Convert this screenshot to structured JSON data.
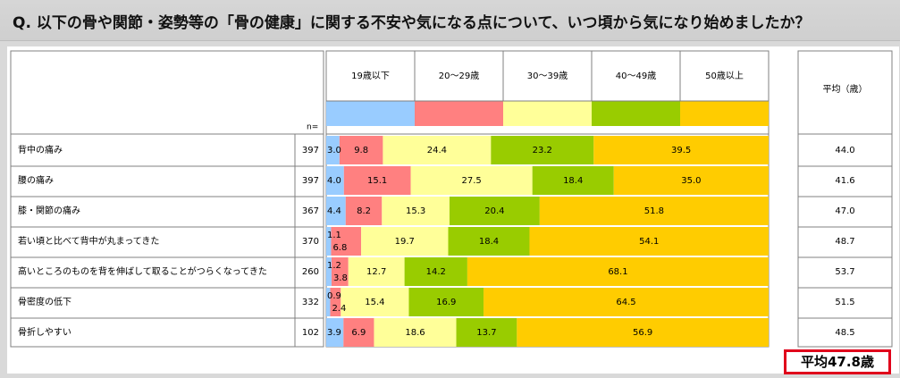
{
  "title": "Q. 以下の骨や関節・姿勢等の「骨の健康」に関する不安や気になる点について、いつ頃から気になり始めましたか？",
  "n_label": "n=",
  "avg_header": "平均（歳）",
  "overall_avg": "平均47.8歳",
  "colors": {
    "seg": [
      "#99ccff",
      "#ff8080",
      "#ffff99",
      "#99cc00",
      "#ffcc00"
    ],
    "border": "#808080",
    "red": "#e0001b"
  },
  "chart_data": {
    "type": "bar",
    "orientation": "horizontal",
    "stacked": true,
    "series": [
      {
        "name": "19歳以下",
        "values": [
          3.0,
          4.0,
          4.4,
          1.1,
          1.2,
          0.9,
          3.9
        ]
      },
      {
        "name": "20～29歳",
        "values": [
          9.8,
          15.1,
          8.2,
          6.8,
          3.8,
          2.4,
          6.9
        ]
      },
      {
        "name": "30～39歳",
        "values": [
          24.4,
          27.5,
          15.3,
          19.7,
          12.7,
          15.4,
          18.6
        ]
      },
      {
        "name": "40～49歳",
        "values": [
          23.2,
          18.4,
          20.4,
          18.4,
          14.2,
          16.9,
          13.7
        ]
      },
      {
        "name": "50歳以上",
        "values": [
          39.5,
          35.0,
          51.8,
          54.1,
          68.1,
          64.5,
          56.9
        ]
      }
    ],
    "categories": [
      "背中の痛み",
      "腰の痛み",
      "膝・関節の痛み",
      "若い頃と比べて背中が丸まってきた",
      "高いところのものを背を伸ばして取ることがつらくなってきた",
      "骨密度の低下",
      "骨折しやすい"
    ],
    "n": [
      "397",
      "397",
      "367",
      "370",
      "260",
      "332",
      "102"
    ],
    "averages": [
      "44.0",
      "41.6",
      "47.0",
      "48.7",
      "53.7",
      "51.5",
      "48.5"
    ],
    "xlim": [
      0,
      100
    ]
  }
}
